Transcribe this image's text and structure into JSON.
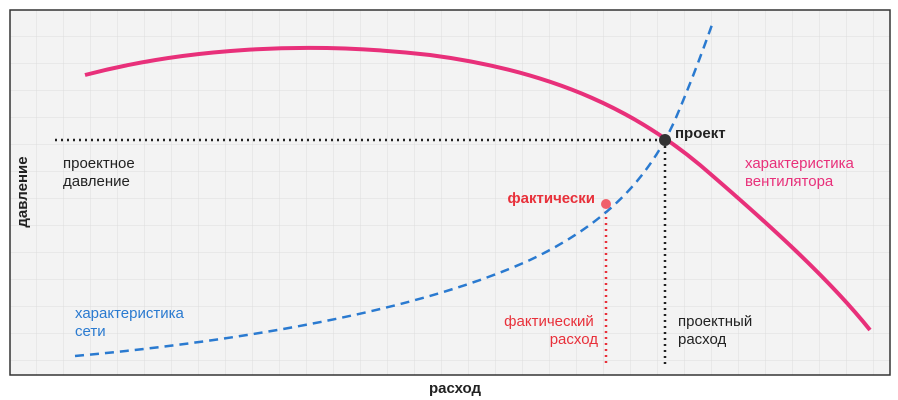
{
  "axes": {
    "y_label": "давление",
    "x_label": "расход"
  },
  "curves": {
    "fan": [
      "характеристика",
      "вентилятора"
    ],
    "system": [
      "характеристика",
      "сети"
    ]
  },
  "points": {
    "design": "проект",
    "actual": "фактически"
  },
  "markers": {
    "design_pressure": [
      "проектное",
      "давление"
    ],
    "design_flow": [
      "проектный",
      "расход"
    ],
    "actual_flow": [
      "фактический",
      "расход"
    ]
  }
}
